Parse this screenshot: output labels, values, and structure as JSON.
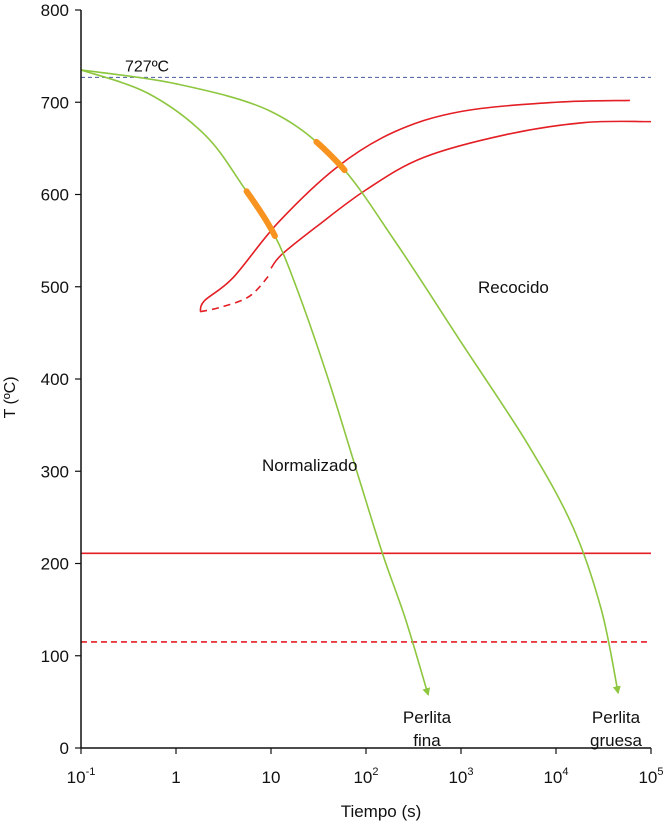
{
  "chart_data": {
    "type": "line",
    "title": "",
    "xlabel": "Tiempo (s)",
    "ylabel": "T (ºC)",
    "xscale": "log",
    "xlim": [
      0.1,
      100000
    ],
    "ylim": [
      0,
      800
    ],
    "x_ticks": [
      {
        "value": 0.1,
        "base": "10",
        "exp": "-1"
      },
      {
        "value": 1,
        "base": "1",
        "exp": ""
      },
      {
        "value": 10,
        "base": "10",
        "exp": ""
      },
      {
        "value": 100,
        "base": "10",
        "exp": "2"
      },
      {
        "value": 1000,
        "base": "10",
        "exp": "3"
      },
      {
        "value": 10000,
        "base": "10",
        "exp": "4"
      },
      {
        "value": 100000,
        "base": "10",
        "exp": "5"
      }
    ],
    "y_ticks": [
      0,
      100,
      200,
      300,
      400,
      500,
      600,
      700,
      800
    ],
    "grid": false,
    "reference_lines": [
      {
        "label": "727ºC",
        "y": 727,
        "color": "#4a5aa0",
        "style": "dashed"
      },
      {
        "label": "",
        "y": 211,
        "color": "#e31e24",
        "style": "solid"
      },
      {
        "label": "",
        "y": 115,
        "color": "#e31e24",
        "style": "dashed"
      }
    ],
    "cooling_curves": [
      {
        "label": "Normalizado",
        "end_label": [
          "Perlita",
          "fina"
        ],
        "color": "#8dc63f",
        "points": [
          [
            0.1,
            735
          ],
          [
            0.5,
            710
          ],
          [
            2,
            665
          ],
          [
            5,
            610
          ],
          [
            11,
            555
          ],
          [
            20,
            490
          ],
          [
            40,
            400
          ],
          [
            80,
            300
          ],
          [
            150,
            210
          ],
          [
            260,
            140
          ],
          [
            450,
            58
          ]
        ]
      },
      {
        "label": "Recocido",
        "end_label": [
          "Perlita",
          "gruesa"
        ],
        "color": "#8dc63f",
        "points": [
          [
            0.1,
            735
          ],
          [
            1,
            720
          ],
          [
            10,
            690
          ],
          [
            50,
            635
          ],
          [
            200,
            550
          ],
          [
            1000,
            440
          ],
          [
            5000,
            330
          ],
          [
            15000,
            240
          ],
          [
            30000,
            150
          ],
          [
            45000,
            60
          ]
        ]
      }
    ],
    "transformation_curves": [
      {
        "name": "start",
        "color": "#e31e24",
        "points": [
          [
            60000,
            702
          ],
          [
            10000,
            700
          ],
          [
            1000,
            690
          ],
          [
            200,
            668
          ],
          [
            50,
            630
          ],
          [
            12,
            570
          ],
          [
            4,
            510
          ],
          [
            2,
            485
          ],
          [
            1.8,
            473
          ]
        ],
        "dashed_tail": [
          [
            1.8,
            473
          ],
          [
            3,
            478
          ],
          [
            6,
            490
          ],
          [
            10,
            515
          ]
        ]
      },
      {
        "name": "finish",
        "color": "#e31e24",
        "points": [
          [
            100000,
            679
          ],
          [
            20000,
            678
          ],
          [
            3000,
            665
          ],
          [
            400,
            640
          ],
          [
            100,
            605
          ],
          [
            30,
            565
          ],
          [
            13,
            535
          ],
          [
            10,
            520
          ]
        ]
      }
    ],
    "transformation_segments": [
      {
        "on": "Normalizado",
        "x": [
          5.5,
          11
        ],
        "color": "#f7931e"
      },
      {
        "on": "Recocido",
        "x": [
          30,
          60
        ],
        "color": "#f7931e"
      }
    ]
  }
}
